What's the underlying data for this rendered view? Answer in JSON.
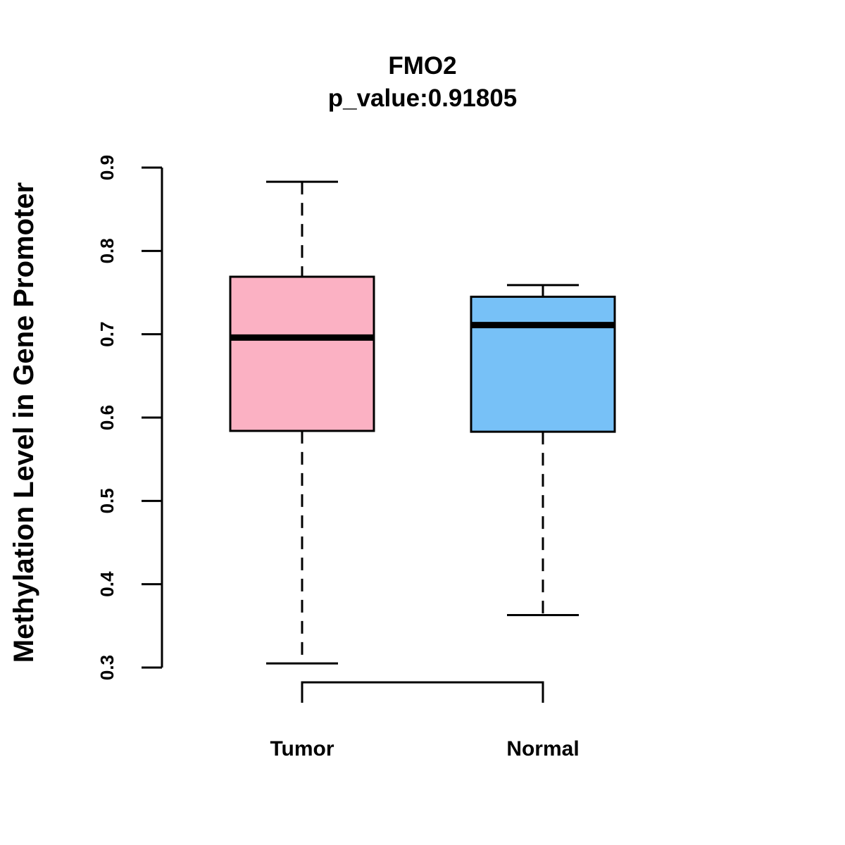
{
  "chart_data": {
    "type": "boxplot",
    "title": "FMO2",
    "subtitle": "p_value:0.91805",
    "xlabel": "",
    "ylabel": "Methylation Level in Gene Promoter",
    "ylim": [
      0.27,
      0.93
    ],
    "yticks": [
      "0.3",
      "0.4",
      "0.5",
      "0.6",
      "0.7",
      "0.8",
      "0.9"
    ],
    "grid": false,
    "significance_bracket": true,
    "series": [
      {
        "name": "Tumor",
        "color": "#FBB1C3",
        "min": 0.305,
        "q1": 0.584,
        "median": 0.696,
        "q3": 0.769,
        "max": 0.883
      },
      {
        "name": "Normal",
        "color": "#77C1F7",
        "min": 0.363,
        "q1": 0.583,
        "median": 0.711,
        "q3": 0.745,
        "max": 0.759
      }
    ]
  }
}
